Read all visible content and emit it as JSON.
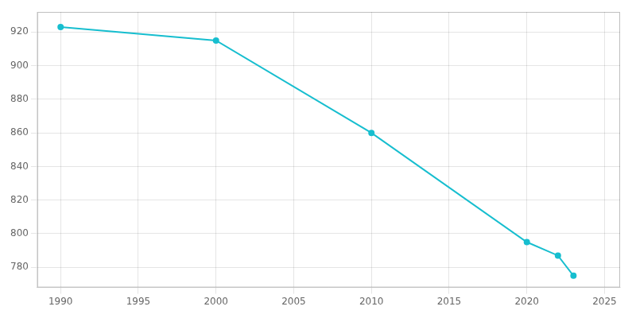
{
  "chart_data": {
    "type": "line",
    "x": [
      1990,
      2000,
      2010,
      2020,
      2022,
      2023
    ],
    "values": [
      923,
      915,
      860,
      795,
      787,
      775
    ],
    "color": "#17BECF",
    "marker": "circle",
    "xlim": [
      1988.5,
      2026
    ],
    "xticks": [
      1990,
      1995,
      2000,
      2005,
      2010,
      2015,
      2020,
      2025
    ],
    "ylim": [
      768,
      932
    ],
    "yticks": [
      780,
      800,
      820,
      840,
      860,
      880,
      900,
      920
    ],
    "grid": true
  }
}
